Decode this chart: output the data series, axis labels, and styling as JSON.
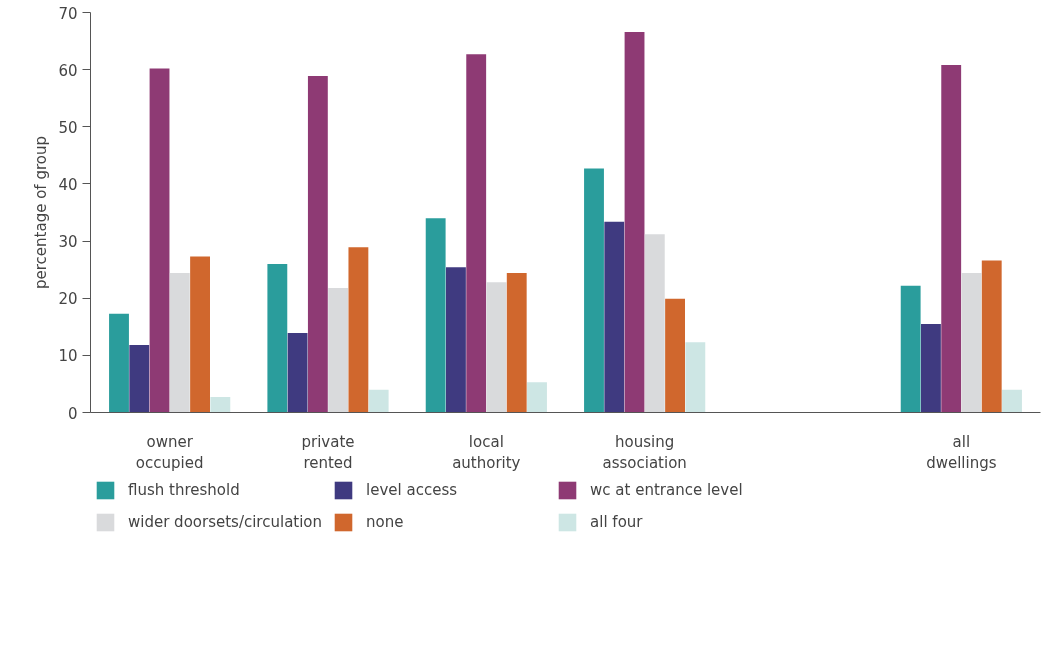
{
  "chart_data": {
    "type": "bar",
    "ylabel": "percentage of group",
    "categories": [
      "owner\noccupied",
      "private\nrented",
      "local\nauthority",
      "housing\nassociation",
      null,
      "all\ndwellings"
    ],
    "series": [
      {
        "name": "flush threshold",
        "color": "#2a9d9c",
        "values": [
          17.3,
          26.0,
          34.0,
          42.7,
          null,
          22.2
        ]
      },
      {
        "name": "level access",
        "color": "#3f3a80",
        "values": [
          11.8,
          13.9,
          25.4,
          33.4,
          null,
          15.5
        ]
      },
      {
        "name": "wc at entrance level",
        "color": "#8e3a74",
        "values": [
          60.2,
          58.9,
          62.7,
          66.6,
          null,
          60.8
        ]
      },
      {
        "name": "wider doorsets/circulation",
        "color": "#d9dadc",
        "values": [
          24.4,
          21.8,
          22.8,
          31.2,
          null,
          24.4
        ]
      },
      {
        "name": "none",
        "color": "#d0672d",
        "values": [
          27.3,
          28.9,
          24.4,
          19.9,
          null,
          26.6
        ]
      },
      {
        "name": "all four",
        "color": "#cde6e4",
        "values": [
          2.7,
          4.0,
          5.3,
          12.3,
          null,
          4.0
        ]
      }
    ],
    "ylim": [
      0,
      70
    ],
    "yticks": [
      0,
      10,
      20,
      30,
      40,
      50,
      60,
      70
    ],
    "grid": false,
    "legend": "bottom"
  }
}
